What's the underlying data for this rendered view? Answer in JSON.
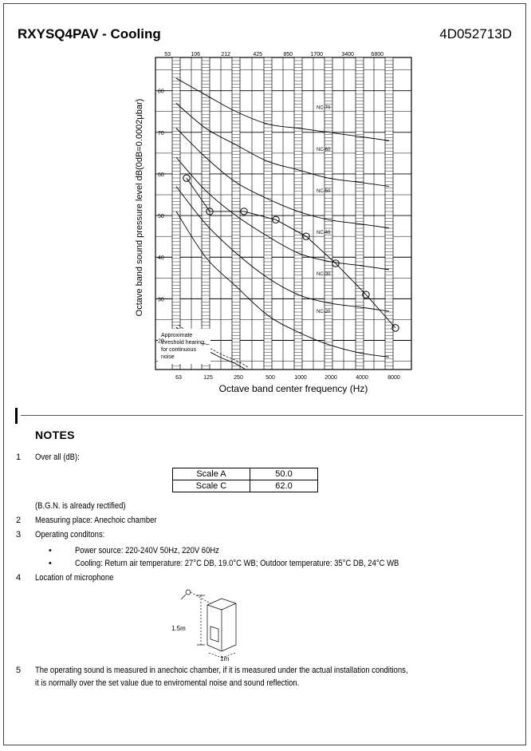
{
  "header": {
    "title": "RXYSQ4PAV - Cooling",
    "doc_number": "4D052713D"
  },
  "chart_data": {
    "type": "line",
    "title": "RXYSQ4PAV - Cooling",
    "xlabel": "Octave band center frequency (Hz)",
    "ylabel": "Octave band sound pressure level   dB(0dB=0.0002μbar)",
    "categories": [
      "63",
      "125",
      "250",
      "500",
      "1000",
      "2000",
      "4000",
      "8000"
    ],
    "top_band_labels": [
      "53",
      "106",
      "212",
      "425",
      "850",
      "1700",
      "3400",
      "6800"
    ],
    "y_ticks": [
      "20",
      "30",
      "40",
      "50",
      "60",
      "70",
      "80"
    ],
    "ylim": [
      13,
      88
    ],
    "grid": true,
    "series": [
      {
        "values": [
          59,
          51,
          51,
          49,
          45,
          38.5,
          31,
          23
        ]
      }
    ],
    "nc_curves": [
      {
        "label": "NC-70",
        "values": [
          83,
          79,
          75,
          72,
          71,
          70,
          69,
          68
        ]
      },
      {
        "label": "NC-60",
        "values": [
          77,
          71,
          67,
          63,
          61,
          59,
          58,
          57
        ]
      },
      {
        "label": "NC-50",
        "values": [
          71,
          64,
          58,
          54,
          51,
          49,
          48,
          47
        ]
      },
      {
        "label": "NC-40",
        "values": [
          64,
          56,
          50,
          45,
          41,
          39,
          38,
          37
        ]
      },
      {
        "label": "NC-30",
        "values": [
          57,
          48,
          41,
          35,
          31,
          29,
          28,
          27
        ]
      },
      {
        "label": "NC-20",
        "values": [
          51,
          40,
          33,
          26,
          22,
          19,
          17,
          16
        ]
      }
    ],
    "threshold_label": "Approximate threshold hearing for continuous noise"
  },
  "notes": {
    "heading": "NOTES",
    "n1": "1",
    "n1_text": "Over all (dB):",
    "scales": [
      {
        "label": "Scale A",
        "value": "50.0"
      },
      {
        "label": "Scale C",
        "value": "62.0"
      }
    ],
    "bgn": "(B.G.N. is already rectified)",
    "n2": "2",
    "n2_text": "Measuring place: Anechoic chamber",
    "n3": "3",
    "n3_text": "Operating conditons:",
    "bullet": "•",
    "b1": "Power source: 220-240V 50Hz, 220V 60Hz",
    "b2": "Cooling: Return air temperature: 27°C DB, 19.0°C WB; Outdoor temperature: 35°C DB, 24°C WB",
    "n4": "4",
    "n4_text": "Location of microphone",
    "dim_height": "1.5m",
    "dim_depth": "1m",
    "n5": "5",
    "n5_line1": "The operating sound is measured in anechoic chamber, if it is measured under the actual installation conditions,",
    "n5_line2": "it is normally over the set value due to enviromental noise and sound reflection."
  }
}
